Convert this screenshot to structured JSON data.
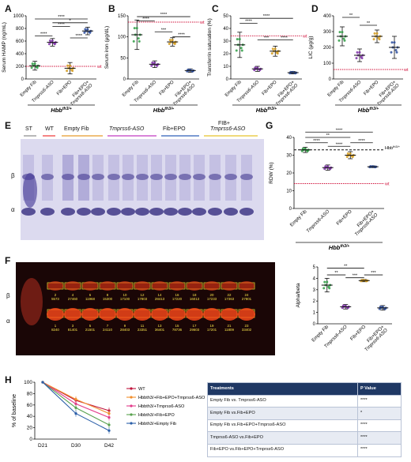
{
  "panel_labels": {
    "A": "A",
    "B": "B",
    "C": "C",
    "D": "D",
    "E": "E",
    "F": "F",
    "G": "G",
    "H": "H"
  },
  "genotype": "Hbbth3/+",
  "genotype_base": "Hbb",
  "genotype_sup": "th3/+",
  "wt_label": "wt",
  "sig": {
    "s4": "****",
    "s3": "***",
    "s2": "**",
    "s1": "*"
  },
  "groups": [
    "Empty Fib",
    "Tmprss6-ASO",
    "Fib+EPO",
    "Fib+EPO+\nTmprss6-ASO"
  ],
  "panelE": {
    "top_labels": [
      "ST",
      "WT",
      "Empty Fib",
      "Tmprss6-ASO",
      "Fib+EPO",
      "FIB+",
      "Tmprss6-ASO"
    ],
    "beta": "β",
    "alpha": "α"
  },
  "panelF": {
    "beta": "β",
    "alpha": "α",
    "band_numbers_top": [
      "2\n5573",
      "4\n27460",
      "6\n11968",
      "8\n15300",
      "10\n17100",
      "12\n17803",
      "14\n28413",
      "16\n17220",
      "18\n16013",
      "20\n17233",
      "22\n17363",
      "24\n27801"
    ],
    "band_numbers_bottom": [
      "1\n8240",
      "3\n81401",
      "5\n21501",
      "7\n24110",
      "9\n28403",
      "11\n23351",
      "13\n36401",
      "15\n78736",
      "17\n29603",
      "19\n17201",
      "21\n11809",
      "23\n33402"
    ]
  },
  "panelH": {
    "table_header": [
      "Treatments",
      "P Value"
    ],
    "table_rows": [
      [
        "Empty Fib vs. Tmprss6-ASO",
        "****"
      ],
      [
        "Empty Fib vs.Fib+EPO",
        "*"
      ],
      [
        "Empty Fib vs.Fib+EPO+Tmprss6-ASO",
        "****"
      ],
      [
        "Tmprss6-ASO vs.Fib+EPO",
        "****"
      ],
      [
        "Fib+EPO vs.Fib+EPO+Tmprss6-ASO",
        "****"
      ]
    ],
    "legend": [
      {
        "label": "WT",
        "color": "#c0143c"
      },
      {
        "label": "Hbbth3/+Fib+EPO+Tmprss6-ASO",
        "color": "#f28e2b"
      },
      {
        "label": "Hbbth3/+Tmprss6-ASO",
        "color": "#e23b8a"
      },
      {
        "label": "Hbbth3/+Fib+EPO",
        "color": "#59a14f"
      },
      {
        "label": "Hbbth3/+Empty Fib",
        "color": "#2b5fa8"
      }
    ]
  },
  "chart_data": [
    {
      "type": "scatter",
      "panel": "A",
      "ylabel": "Serum HAMP (ng/mL)",
      "yticks": [
        0,
        200,
        400,
        600,
        800,
        1000
      ],
      "ylim": [
        0,
        1000
      ],
      "categories": [
        "Empty Fib",
        "Tmprss6-ASO",
        "Fib+EPO",
        "Fib+EPO+ Tmprss6-ASO"
      ],
      "means": [
        210,
        580,
        170,
        760
      ],
      "errors": [
        70,
        60,
        90,
        60
      ],
      "wt_line": 200,
      "color": "#2e9e44"
    },
    {
      "type": "scatter",
      "panel": "B",
      "ylabel": "Serum iron (μg/dL)",
      "yticks": [
        0,
        50,
        100,
        150
      ],
      "ylim": [
        0,
        150
      ],
      "categories": [
        "Empty Fib",
        "Tmprss6-ASO",
        "Fib+EPO",
        "Fib+EPO+ Tmprss6-ASO"
      ],
      "means": [
        105,
        35,
        88,
        20
      ],
      "errors": [
        35,
        8,
        10,
        4
      ],
      "wt_line": 135,
      "color": "#2e9e44"
    },
    {
      "type": "scatter",
      "panel": "C",
      "ylabel": "Transferrin saturation (%)",
      "yticks": [
        0,
        10,
        20,
        30,
        40,
        50
      ],
      "ylim": [
        0,
        50
      ],
      "categories": [
        "Empty Fib",
        "Tmprss6-ASO",
        "Fib+EPO",
        "Fib+EPO+ Tmprss6-ASO"
      ],
      "means": [
        27,
        8,
        22,
        5
      ],
      "errors": [
        10,
        2,
        4,
        1
      ],
      "wt_line": 34,
      "color": "#2e9e44"
    },
    {
      "type": "scatter",
      "panel": "D",
      "ylabel": "LIC (μg/g)",
      "yticks": [
        0,
        100,
        200,
        300,
        400
      ],
      "ylim": [
        0,
        400
      ],
      "categories": [
        "Empty Fib",
        "Tmprss6-ASO",
        "Fib+EPO",
        "Fib+EPO+ Tmprss6-ASO"
      ],
      "means": [
        270,
        150,
        270,
        200
      ],
      "errors": [
        60,
        40,
        40,
        70
      ],
      "wt_line": 60,
      "color": "#2e9e44"
    },
    {
      "type": "scatter",
      "panel": "G",
      "ylabel": "RDW (%)",
      "yticks": [
        0,
        10,
        20,
        30,
        40
      ],
      "ylim": [
        0,
        40
      ],
      "categories": [
        "Empty Fib",
        "Tmprss6-ASO",
        "Fib+EPO",
        "Fib+EPO+ Tmprss6-ASO"
      ],
      "means": [
        33,
        23,
        30,
        23.5
      ],
      "errors": [
        1.5,
        1.5,
        2,
        0.5
      ],
      "ref_line": 33,
      "ref_label": "Hbbth3/+",
      "wt_line": 14,
      "color": "#2e9e44"
    },
    {
      "type": "scatter",
      "panel": "F2",
      "ylabel": "Alpha/beta",
      "yticks": [
        0,
        1,
        2,
        3,
        4,
        5
      ],
      "ylim": [
        0,
        5
      ],
      "categories": [
        "Empty Fib",
        "Tmprss6-ASO",
        "Fib+EPO",
        "Fib+EPO+ Tmprss6-ASO"
      ],
      "means": [
        3.4,
        1.5,
        3.8,
        1.4
      ],
      "errors": [
        0.6,
        0.2,
        0.1,
        0.2
      ],
      "color": "#2e9e44"
    },
    {
      "type": "line",
      "panel": "H",
      "ylabel": "% of baseline",
      "yticks": [
        0,
        20,
        40,
        60,
        80,
        100
      ],
      "ylim": [
        0,
        100
      ],
      "x": [
        "D21",
        "D30",
        "D42"
      ],
      "series": [
        {
          "name": "WT",
          "values": [
            100,
            68,
            50
          ]
        },
        {
          "name": "Hbbth3/+Fib+EPO+Tmprss6-ASO",
          "values": [
            100,
            70,
            45
          ]
        },
        {
          "name": "Hbbth3/+Tmprss6-ASO",
          "values": [
            100,
            62,
            38
          ]
        },
        {
          "name": "Hbbth3/+Fib+EPO",
          "values": [
            100,
            55,
            25
          ]
        },
        {
          "name": "Hbbth3/+Empty Fib",
          "values": [
            100,
            45,
            15
          ]
        }
      ]
    }
  ]
}
